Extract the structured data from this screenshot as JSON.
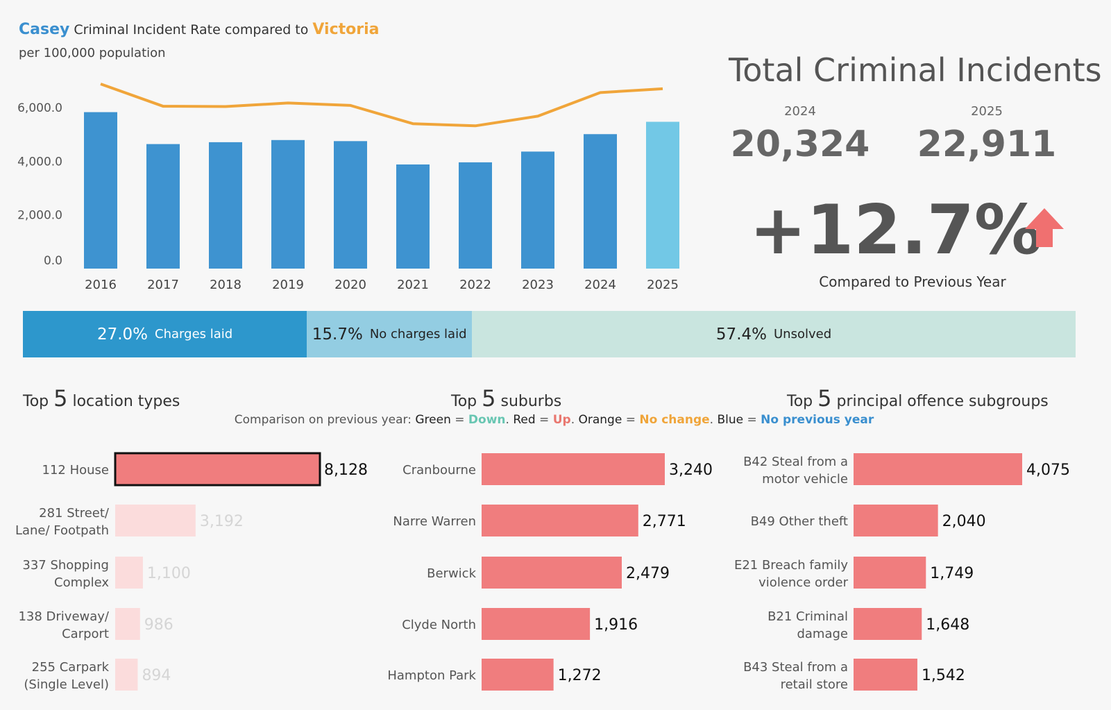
{
  "header": {
    "region": "Casey",
    "title_mid": "Criminal Incident Rate",
    "compared_to": "compared to",
    "comparison_region": "Victoria",
    "subtitle": "per 100,000 population"
  },
  "colors": {
    "bar": "#3e93d0",
    "bar_latest": "#72c8e6",
    "line": "#f0a53a",
    "red_bar": "#f07d7e",
    "faded_bar": "#fbdcdc",
    "faded_text": "#d5d5d5",
    "arrow": "#f07070"
  },
  "kpi": {
    "title": "Total Criminal Incidents",
    "year_a": "2024",
    "value_a": "20,324",
    "year_b": "2025",
    "value_b": "22,911",
    "change": "+12.7%",
    "caption": "Compared to Previous Year",
    "arrow_icon": "up-arrow-icon"
  },
  "outcomes": {
    "charged_pct": "27.0%",
    "charged_label": "Charges laid",
    "charged_value": 27.0,
    "nocharge_pct": "15.7%",
    "nocharge_label": "No charges laid",
    "nocharge_value": 15.7,
    "unsolved_pct": "57.4%",
    "unsolved_label": "Unsolved",
    "unsolved_value": 57.4
  },
  "sections": {
    "locations": {
      "pre": "Top",
      "num": "5",
      "post": "location types"
    },
    "suburbs": {
      "pre": "Top",
      "num": "5",
      "post": "suburbs"
    },
    "offences": {
      "pre": "Top",
      "num": "5",
      "post": "principal offence subgroups"
    }
  },
  "legend": {
    "intro": "Comparison on previous year:",
    "green_key": "Green",
    "green_val": "Down",
    "red_key": "Red",
    "red_val": "Up",
    "orange_key": "Orange",
    "orange_val": "No change",
    "blue_key": "Blue",
    "blue_val": "No previous year",
    "eq": " = ",
    "sep": ". "
  },
  "chart_data": [
    {
      "type": "bar",
      "title": "Casey Criminal Incident Rate compared to Victoria",
      "subtitle": "per 100,000 population",
      "categories": [
        "2016",
        "2017",
        "2018",
        "2019",
        "2020",
        "2021",
        "2022",
        "2023",
        "2024",
        "2025"
      ],
      "series": [
        {
          "name": "Casey",
          "kind": "bar",
          "values": [
            5830,
            4640,
            4710,
            4790,
            4750,
            3880,
            3960,
            4360,
            5010,
            5470
          ]
        },
        {
          "name": "Victoria",
          "kind": "line",
          "values": [
            6880,
            6050,
            6040,
            6170,
            6080,
            5400,
            5320,
            5680,
            6560,
            6700
          ]
        }
      ],
      "yticks": [
        "6,000.0",
        "4,000.0",
        "2,000.0",
        "0.0"
      ],
      "ylim": [
        0,
        7500
      ]
    },
    {
      "type": "bar",
      "orientation": "horizontal",
      "title": "Top 5 location types",
      "categories": [
        [
          "112 House"
        ],
        [
          "281 Street/",
          "Lane/ Footpath"
        ],
        [
          "337 Shopping",
          "Complex"
        ],
        [
          "138 Driveway/",
          "Carport"
        ],
        [
          "255 Carpark",
          "(Single Level)"
        ]
      ],
      "values": [
        8128,
        3192,
        1100,
        986,
        894
      ],
      "labels": [
        "8,128",
        "3,192",
        "1,100",
        "986",
        "894"
      ],
      "highlight": [
        true,
        false,
        false,
        false,
        false
      ]
    },
    {
      "type": "bar",
      "orientation": "horizontal",
      "title": "Top 5 suburbs",
      "categories": [
        [
          "Cranbourne"
        ],
        [
          "Narre Warren"
        ],
        [
          "Berwick"
        ],
        [
          "Clyde North"
        ],
        [
          "Hampton Park"
        ]
      ],
      "values": [
        3240,
        2771,
        2479,
        1916,
        1272
      ],
      "labels": [
        "3,240",
        "2,771",
        "2,479",
        "1,916",
        "1,272"
      ]
    },
    {
      "type": "bar",
      "orientation": "horizontal",
      "title": "Top 5 principal offence subgroups",
      "categories": [
        [
          "B42 Steal from a",
          "motor vehicle"
        ],
        [
          "B49 Other theft"
        ],
        [
          "E21 Breach family",
          "violence order"
        ],
        [
          "B21 Criminal",
          "damage"
        ],
        [
          "B43 Steal from a",
          "retail store"
        ]
      ],
      "values": [
        4075,
        2040,
        1749,
        1648,
        1542
      ],
      "labels": [
        "4,075",
        "2,040",
        "1,749",
        "1,648",
        "1,542"
      ]
    }
  ]
}
